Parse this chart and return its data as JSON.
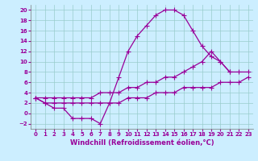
{
  "xlabel": "Windchill (Refroidissement éolien,°C)",
  "bg_color": "#cceeff",
  "grid_color": "#99cccc",
  "line_color": "#990099",
  "xlim": [
    -0.5,
    23.5
  ],
  "ylim": [
    -3,
    21
  ],
  "xticks": [
    0,
    1,
    2,
    3,
    4,
    5,
    6,
    7,
    8,
    9,
    10,
    11,
    12,
    13,
    14,
    15,
    16,
    17,
    18,
    19,
    20,
    21,
    22,
    23
  ],
  "yticks": [
    -2,
    0,
    2,
    4,
    6,
    8,
    10,
    12,
    14,
    16,
    18,
    20
  ],
  "line1_x": [
    0,
    1,
    2,
    3,
    4,
    5,
    6,
    7,
    8,
    9,
    10,
    11,
    12,
    13,
    14,
    15,
    16,
    17,
    18,
    19,
    20,
    21
  ],
  "line1_y": [
    3,
    2,
    1,
    1,
    -1,
    -1,
    -1,
    -2,
    2,
    7,
    12,
    15,
    17,
    19,
    20,
    20,
    19,
    16,
    13,
    11,
    10,
    8
  ],
  "line2_x": [
    0,
    1,
    2,
    3,
    4,
    5,
    6,
    7,
    8,
    9,
    10,
    11,
    12,
    13,
    14,
    15,
    16,
    17,
    18,
    19,
    20,
    21,
    22,
    23
  ],
  "line2_y": [
    3,
    3,
    3,
    3,
    3,
    3,
    3,
    4,
    4,
    4,
    5,
    5,
    6,
    6,
    7,
    7,
    8,
    9,
    10,
    12,
    10,
    8,
    8,
    8
  ],
  "line3_x": [
    0,
    1,
    2,
    3,
    4,
    5,
    6,
    7,
    8,
    9,
    10,
    11,
    12,
    13,
    14,
    15,
    16,
    17,
    18,
    19,
    20,
    21,
    22,
    23
  ],
  "line3_y": [
    3,
    2,
    2,
    2,
    2,
    2,
    2,
    2,
    2,
    2,
    3,
    3,
    3,
    4,
    4,
    4,
    5,
    5,
    5,
    5,
    6,
    6,
    6,
    7
  ],
  "marker": "+",
  "markersize": 4,
  "markeredgewidth": 0.8,
  "linewidth": 0.9,
  "tick_fontsize": 5,
  "label_fontsize": 6
}
